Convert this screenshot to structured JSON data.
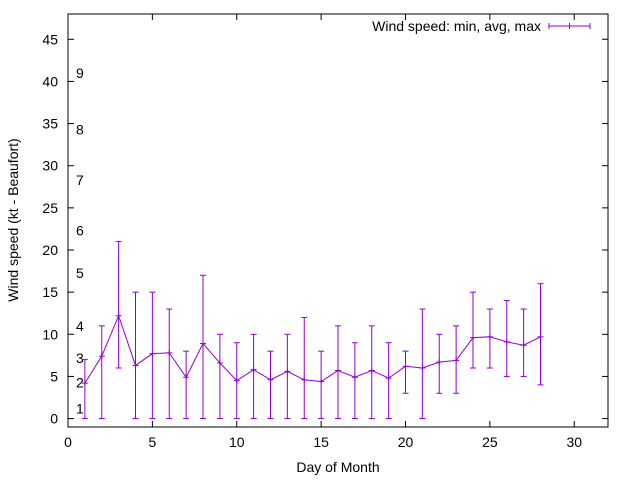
{
  "chart_data": {
    "type": "line",
    "title": "",
    "xlabel": "Day of Month",
    "ylabel": "Wind speed (kt - Beaufort)",
    "xlim": [
      0,
      32
    ],
    "ylim": [
      -1,
      48
    ],
    "xticks": [
      0,
      5,
      10,
      15,
      20,
      25,
      30
    ],
    "yticks": [
      0,
      5,
      10,
      15,
      20,
      25,
      30,
      35,
      40,
      45
    ],
    "grid": false,
    "legend_position": "top-right",
    "beaufort_labels": [
      {
        "label": "1",
        "y": 1.2
      },
      {
        "label": "2",
        "y": 4.3
      },
      {
        "label": "3",
        "y": 7.2
      },
      {
        "label": "4",
        "y": 11
      },
      {
        "label": "5",
        "y": 17.3
      },
      {
        "label": "6",
        "y": 22.3
      },
      {
        "label": "7",
        "y": 28.3
      },
      {
        "label": "8",
        "y": 34.3
      },
      {
        "label": "9",
        "y": 41
      }
    ],
    "series": [
      {
        "name": "Wind speed: min, avg, max",
        "color": "#9400d3",
        "style": "line with error bars",
        "x": [
          1,
          2,
          3,
          4,
          5,
          6,
          7,
          8,
          9,
          10,
          11,
          12,
          13,
          14,
          15,
          16,
          17,
          18,
          19,
          20,
          21,
          22,
          23,
          24,
          25,
          26,
          27,
          28
        ],
        "avg": [
          4.2,
          7.4,
          12.2,
          6.3,
          7.7,
          7.8,
          4.9,
          8.9,
          6.6,
          4.5,
          5.8,
          4.6,
          5.6,
          4.6,
          4.4,
          5.7,
          4.9,
          5.7,
          4.8,
          6.2,
          6.0,
          6.7,
          6.9,
          9.6,
          9.7,
          9.1,
          8.7,
          9.7
        ],
        "min": [
          0,
          0,
          6,
          0,
          0,
          0,
          0,
          0,
          0,
          0,
          0,
          0,
          0,
          0,
          0,
          0,
          0,
          0,
          0,
          3,
          0,
          3,
          3,
          6,
          6,
          5,
          5,
          4
        ],
        "max": [
          7,
          11,
          21,
          15,
          15,
          13,
          8,
          17,
          10,
          9,
          10,
          8,
          10,
          12,
          8,
          11,
          9,
          11,
          9,
          8,
          13,
          10,
          11,
          15,
          13,
          14,
          13,
          16
        ]
      }
    ]
  }
}
